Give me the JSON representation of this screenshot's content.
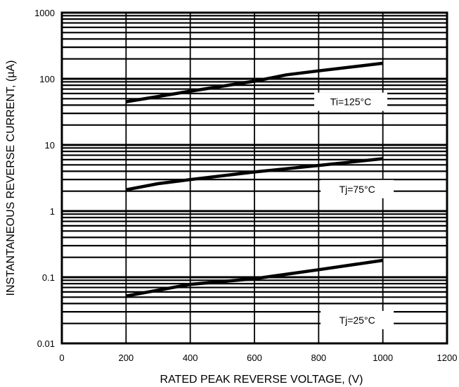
{
  "chart_data": {
    "type": "line",
    "title": "",
    "xlabel": "RATED PEAK REVERSE VOLTAGE, (V)",
    "ylabel": "INSTANTANEOUS REVERSE CURRENT, (µA)",
    "x_scale": "linear",
    "y_scale": "log",
    "xlim": [
      0,
      1200
    ],
    "ylim": [
      0.01,
      1000
    ],
    "x_ticks": [
      "0",
      "200",
      "400",
      "600",
      "800",
      "1000",
      "1200"
    ],
    "y_ticks": [
      "0.01",
      "0.1",
      "1",
      "10",
      "100",
      "1000"
    ],
    "grid": true,
    "series": [
      {
        "name": "Tj=125°C",
        "label": "Ti=125°C",
        "x": [
          200,
          400,
          600,
          700,
          800,
          1000
        ],
        "y": [
          45,
          65,
          92,
          115,
          132,
          172
        ],
        "label_at": [
          900,
          45
        ]
      },
      {
        "name": "Tj=75°C",
        "label": "Tj=75°C",
        "x": [
          200,
          300,
          400,
          600,
          800,
          1000
        ],
        "y": [
          2.1,
          2.6,
          3.0,
          3.9,
          4.9,
          6.2
        ],
        "label_at": [
          920,
          2.15
        ]
      },
      {
        "name": "Tj=25°C",
        "label": "Tj=25°C",
        "x": [
          200,
          400,
          600,
          800,
          1000
        ],
        "y": [
          0.052,
          0.078,
          0.095,
          0.13,
          0.18
        ],
        "label_at": [
          920,
          0.0225
        ]
      }
    ]
  }
}
